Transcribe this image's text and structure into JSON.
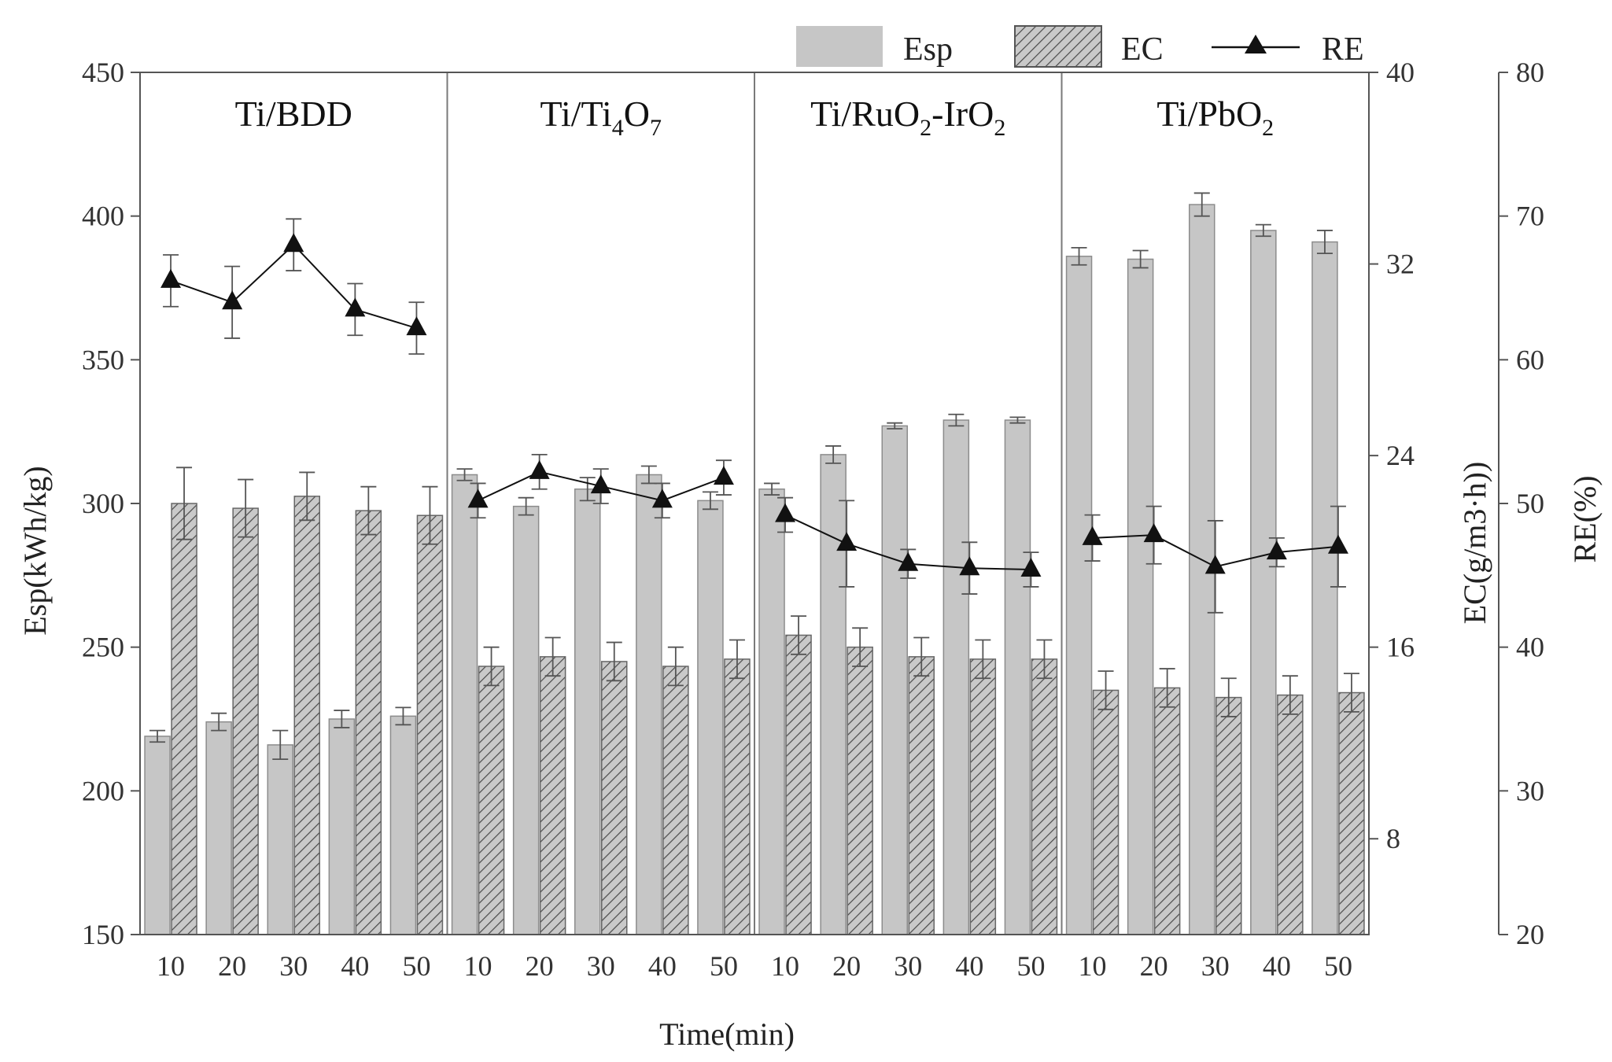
{
  "chart_data": {
    "type": "bar",
    "title": "",
    "xlabel": "Time(min)",
    "ylabel_left": "Esp(kWh/kg)",
    "ylabel_right1": "EC(g/m3·h))",
    "ylabel_right2": "RE(%)",
    "ylim_left": [
      150,
      450
    ],
    "yticks_left": [
      150,
      200,
      250,
      300,
      350,
      400,
      450
    ],
    "ylim_right1": [
      4,
      40
    ],
    "yticks_right1": [
      8,
      16,
      24,
      32,
      40
    ],
    "ylim_right2": [
      20,
      80
    ],
    "yticks_right2": [
      20,
      30,
      40,
      50,
      60,
      70,
      80
    ],
    "times": [
      "10",
      "20",
      "30",
      "40",
      "50"
    ],
    "legend": {
      "esp": "Esp",
      "ec": "EC",
      "re": "RE",
      "placement": "top-right"
    },
    "panels": [
      {
        "label_main": "Ti/BDD",
        "label_subs": [],
        "esp": [
          219,
          224,
          216,
          225,
          226
        ],
        "esp_err": [
          2,
          3,
          5,
          3,
          3
        ],
        "ec": [
          22,
          21.8,
          22.3,
          21.7,
          21.5
        ],
        "ec_err": [
          1.5,
          1.2,
          1.0,
          1.0,
          1.2
        ],
        "re": [
          65.5,
          64.0,
          68.0,
          63.5,
          62.2
        ],
        "re_err": [
          1.8,
          2.5,
          1.8,
          1.8,
          1.8
        ]
      },
      {
        "label_main": "Ti/Ti",
        "label_subs": [
          [
            "4",
            "O"
          ],
          [
            "7",
            ""
          ]
        ],
        "esp": [
          310,
          299,
          305,
          310,
          301
        ],
        "esp_err": [
          2,
          3,
          4,
          3,
          3
        ],
        "ec": [
          15.2,
          15.6,
          15.4,
          15.2,
          15.5
        ],
        "ec_err": [
          0.8,
          0.8,
          0.8,
          0.8,
          0.8
        ],
        "re": [
          50.2,
          52.2,
          51.2,
          50.2,
          51.8
        ],
        "re_err": [
          1.2,
          1.2,
          1.2,
          1.2,
          1.2
        ]
      },
      {
        "label_main": "Ti/RuO",
        "label_subs": [
          [
            "2",
            "-IrO"
          ],
          [
            "2",
            ""
          ]
        ],
        "esp": [
          305,
          317,
          327,
          329,
          329
        ],
        "esp_err": [
          2,
          3,
          1,
          2,
          1
        ],
        "ec": [
          16.5,
          16.0,
          15.6,
          15.5,
          15.5
        ],
        "ec_err": [
          0.8,
          0.8,
          0.8,
          0.8,
          0.8
        ],
        "re": [
          49.2,
          47.2,
          45.8,
          45.5,
          45.4
        ],
        "re_err": [
          1.2,
          3.0,
          1.0,
          1.8,
          1.2
        ]
      },
      {
        "label_main": "Ti/PbO",
        "label_subs": [
          [
            "2",
            ""
          ]
        ],
        "esp": [
          386,
          385,
          404,
          395,
          391
        ],
        "esp_err": [
          3,
          3,
          4,
          2,
          4
        ],
        "ec": [
          14.2,
          14.3,
          13.9,
          14.0,
          14.1
        ],
        "ec_err": [
          0.8,
          0.8,
          0.8,
          0.8,
          0.8
        ],
        "re": [
          47.6,
          47.8,
          45.6,
          46.6,
          47.0
        ],
        "re_err": [
          1.6,
          2.0,
          3.2,
          1.0,
          2.8
        ]
      }
    ]
  },
  "colors": {
    "esp_fill": "#c6c6c6",
    "esp_stroke": "#8c8c8c",
    "ec_fill": "#c9c9c9",
    "ec_hatch": "#4a4a4a",
    "axis": "#555555",
    "divider": "#7a7a7a",
    "line": "#111111"
  }
}
